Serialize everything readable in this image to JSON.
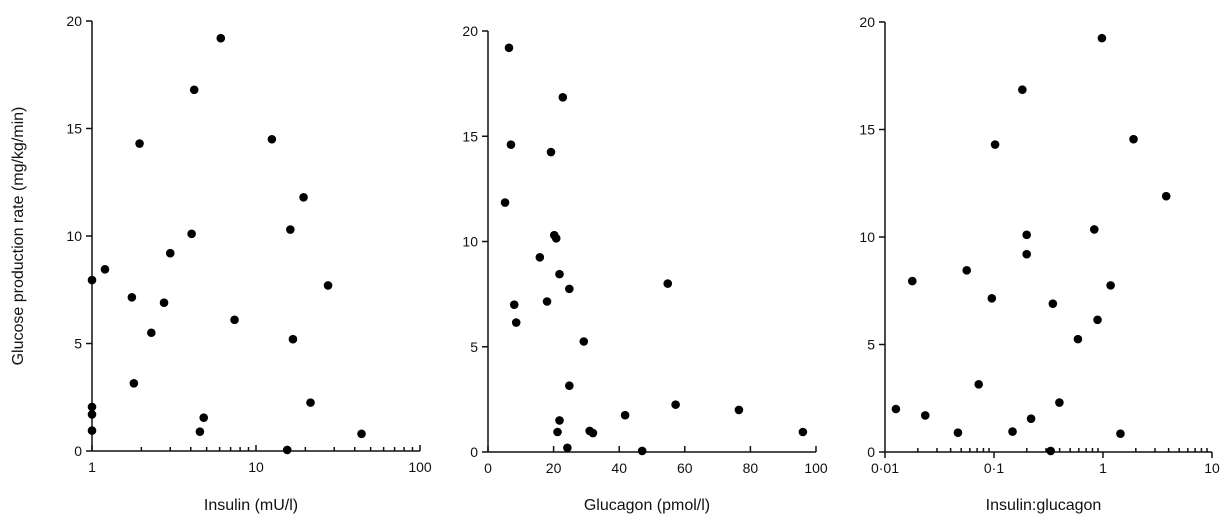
{
  "chart_data": [
    {
      "type": "scatter",
      "xlabel": "Insulin (mU/l)",
      "ylabel": "Glucose production rate (mg/kg/min)",
      "x_scale": "log",
      "xlim": [
        1,
        100
      ],
      "ylim": [
        0,
        20
      ],
      "x_ticks": [
        {
          "value": 1,
          "label": "1"
        },
        {
          "value": 10,
          "label": "10"
        },
        {
          "value": 100,
          "label": "100"
        }
      ],
      "y_ticks": [
        {
          "value": 0,
          "label": "0"
        },
        {
          "value": 5,
          "label": "5"
        },
        {
          "value": 10,
          "label": "10"
        },
        {
          "value": 15,
          "label": "15"
        },
        {
          "value": 20,
          "label": "20"
        }
      ],
      "points": [
        {
          "x": 1.0,
          "y": 7.95
        },
        {
          "x": 1.0,
          "y": 2.05
        },
        {
          "x": 1.0,
          "y": 1.7
        },
        {
          "x": 1.0,
          "y": 0.95
        },
        {
          "x": 1.2,
          "y": 8.45
        },
        {
          "x": 1.75,
          "y": 7.15
        },
        {
          "x": 1.8,
          "y": 3.15
        },
        {
          "x": 1.95,
          "y": 14.3
        },
        {
          "x": 2.3,
          "y": 5.5
        },
        {
          "x": 2.75,
          "y": 6.9
        },
        {
          "x": 3.0,
          "y": 9.2
        },
        {
          "x": 4.05,
          "y": 10.1
        },
        {
          "x": 4.2,
          "y": 16.8
        },
        {
          "x": 4.55,
          "y": 0.9
        },
        {
          "x": 4.8,
          "y": 1.55
        },
        {
          "x": 6.1,
          "y": 19.2
        },
        {
          "x": 7.4,
          "y": 6.1
        },
        {
          "x": 12.5,
          "y": 14.5
        },
        {
          "x": 15.5,
          "y": 0.05
        },
        {
          "x": 16.2,
          "y": 10.3
        },
        {
          "x": 16.8,
          "y": 5.2
        },
        {
          "x": 19.5,
          "y": 11.8
        },
        {
          "x": 21.5,
          "y": 2.25
        },
        {
          "x": 27.5,
          "y": 7.7
        },
        {
          "x": 44.0,
          "y": 0.8
        }
      ]
    },
    {
      "type": "scatter",
      "xlabel": "Glucagon (pmol/l)",
      "ylabel": "",
      "x_scale": "linear",
      "xlim": [
        0,
        100
      ],
      "ylim": [
        0,
        20
      ],
      "x_ticks": [
        {
          "value": 0,
          "label": "0"
        },
        {
          "value": 20,
          "label": "20"
        },
        {
          "value": 40,
          "label": "40"
        },
        {
          "value": 60,
          "label": "60"
        },
        {
          "value": 80,
          "label": "80"
        },
        {
          "value": 100,
          "label": "100"
        }
      ],
      "y_ticks": [
        {
          "value": 0,
          "label": "0"
        },
        {
          "value": 5,
          "label": "5"
        },
        {
          "value": 10,
          "label": "10"
        },
        {
          "value": 15,
          "label": "15"
        },
        {
          "value": 20,
          "label": "20"
        }
      ],
      "points": [
        {
          "x": 5.2,
          "y": 11.85
        },
        {
          "x": 6.4,
          "y": 19.2
        },
        {
          "x": 7.0,
          "y": 14.6
        },
        {
          "x": 8.0,
          "y": 7.0
        },
        {
          "x": 8.6,
          "y": 6.15
        },
        {
          "x": 15.8,
          "y": 9.25
        },
        {
          "x": 18.0,
          "y": 7.15
        },
        {
          "x": 19.2,
          "y": 14.25
        },
        {
          "x": 20.2,
          "y": 10.3
        },
        {
          "x": 20.8,
          "y": 10.15
        },
        {
          "x": 21.2,
          "y": 0.95
        },
        {
          "x": 21.8,
          "y": 8.45
        },
        {
          "x": 21.8,
          "y": 1.5
        },
        {
          "x": 22.8,
          "y": 16.85
        },
        {
          "x": 24.2,
          "y": 0.2
        },
        {
          "x": 24.8,
          "y": 7.75
        },
        {
          "x": 24.8,
          "y": 3.15
        },
        {
          "x": 29.2,
          "y": 5.25
        },
        {
          "x": 31.0,
          "y": 1.0
        },
        {
          "x": 32.0,
          "y": 0.9
        },
        {
          "x": 41.8,
          "y": 1.75
        },
        {
          "x": 47.0,
          "y": 0.05
        },
        {
          "x": 54.8,
          "y": 8.0
        },
        {
          "x": 57.2,
          "y": 2.25
        },
        {
          "x": 76.5,
          "y": 2.0
        },
        {
          "x": 96.0,
          "y": 0.95
        }
      ]
    },
    {
      "type": "scatter",
      "xlabel": "Insulin:glucagon",
      "ylabel": "",
      "x_scale": "log",
      "xlim": [
        0.01,
        10
      ],
      "ylim": [
        0,
        20
      ],
      "x_ticks": [
        {
          "value": 0.01,
          "label": "0·01"
        },
        {
          "value": 0.1,
          "label": "0·1"
        },
        {
          "value": 1,
          "label": "1"
        },
        {
          "value": 10,
          "label": "10"
        }
      ],
      "y_ticks": [
        {
          "value": 0,
          "label": "0"
        },
        {
          "value": 5,
          "label": "5"
        },
        {
          "value": 10,
          "label": "10"
        },
        {
          "value": 15,
          "label": "15"
        },
        {
          "value": 20,
          "label": "20"
        }
      ],
      "points": [
        {
          "x": 0.0126,
          "y": 2.0
        },
        {
          "x": 0.0178,
          "y": 7.95
        },
        {
          "x": 0.0234,
          "y": 1.7
        },
        {
          "x": 0.0467,
          "y": 0.9
        },
        {
          "x": 0.0562,
          "y": 8.45
        },
        {
          "x": 0.0724,
          "y": 3.15
        },
        {
          "x": 0.0955,
          "y": 7.15
        },
        {
          "x": 0.1023,
          "y": 14.3
        },
        {
          "x": 0.1479,
          "y": 0.95
        },
        {
          "x": 0.182,
          "y": 16.85
        },
        {
          "x": 0.1995,
          "y": 9.2
        },
        {
          "x": 0.1995,
          "y": 10.1
        },
        {
          "x": 0.2188,
          "y": 1.55
        },
        {
          "x": 0.3311,
          "y": 0.05
        },
        {
          "x": 0.3467,
          "y": 6.9
        },
        {
          "x": 0.3981,
          "y": 2.3
        },
        {
          "x": 0.5888,
          "y": 5.25
        },
        {
          "x": 0.8318,
          "y": 10.35
        },
        {
          "x": 0.8913,
          "y": 6.15
        },
        {
          "x": 0.9772,
          "y": 19.25
        },
        {
          "x": 1.1749,
          "y": 7.75
        },
        {
          "x": 1.4454,
          "y": 0.85
        },
        {
          "x": 1.9055,
          "y": 14.55
        },
        {
          "x": 3.8019,
          "y": 11.9
        }
      ]
    }
  ]
}
